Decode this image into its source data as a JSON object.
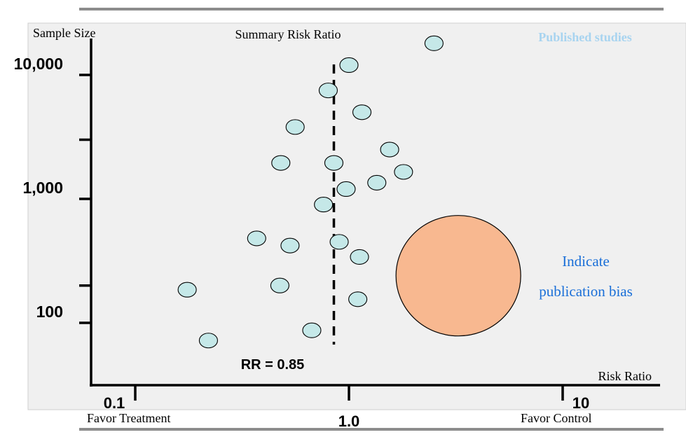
{
  "chart_data": {
    "type": "scatter",
    "title": "",
    "xlabel": "Risk Ratio",
    "ylabel": "Sample Size",
    "x_scale": "log",
    "y_scale": "log",
    "xlim": [
      0.08,
      20
    ],
    "ylim": [
      55,
      25000
    ],
    "x_ticks": [
      {
        "value": 0.1,
        "label": "0.1"
      },
      {
        "value": 1.0,
        "label": "1.0"
      },
      {
        "value": 10,
        "label": "10"
      }
    ],
    "y_ticks": [
      {
        "value": 100,
        "label": "100"
      },
      {
        "value": 1000,
        "label": "1,000"
      },
      {
        "value": 10000,
        "label": "10,000"
      }
    ],
    "y_minor_ticks": [
      200,
      3000
    ],
    "x_side_labels": {
      "left": "Favor Treatment",
      "right": "Favor Control"
    },
    "reference_line": {
      "label": "Summary Risk Ratio",
      "value": 0.85,
      "value_label": "RR = 0.85"
    },
    "legend": {
      "label": "Published studies",
      "placement": "top-right",
      "color": "#a8d4f0"
    },
    "series": [
      {
        "color": "#c5e8e8",
        "points": [
          {
            "x": 2.5,
            "y": 18000
          },
          {
            "x": 1.0,
            "y": 12000
          },
          {
            "x": 0.8,
            "y": 7500
          },
          {
            "x": 1.15,
            "y": 5000
          },
          {
            "x": 0.56,
            "y": 3800
          },
          {
            "x": 1.55,
            "y": 2500
          },
          {
            "x": 0.48,
            "y": 1950
          },
          {
            "x": 0.85,
            "y": 1950
          },
          {
            "x": 1.8,
            "y": 1650
          },
          {
            "x": 1.35,
            "y": 1350
          },
          {
            "x": 0.97,
            "y": 1200
          },
          {
            "x": 0.76,
            "y": 900
          },
          {
            "x": 0.37,
            "y": 480
          },
          {
            "x": 0.53,
            "y": 420
          },
          {
            "x": 0.9,
            "y": 450
          },
          {
            "x": 1.12,
            "y": 340
          },
          {
            "x": 0.175,
            "y": 185
          },
          {
            "x": 0.475,
            "y": 200
          },
          {
            "x": 1.1,
            "y": 155
          },
          {
            "x": 0.67,
            "y": 87
          },
          {
            "x": 0.22,
            "y": 72
          }
        ]
      }
    ],
    "annotation": {
      "lines": [
        "Indicate",
        "publication bias"
      ],
      "color": "#1a6fd8",
      "bubble_color": "#f8b890",
      "bubble_center": {
        "x": 3.25,
        "y": 240
      }
    }
  }
}
